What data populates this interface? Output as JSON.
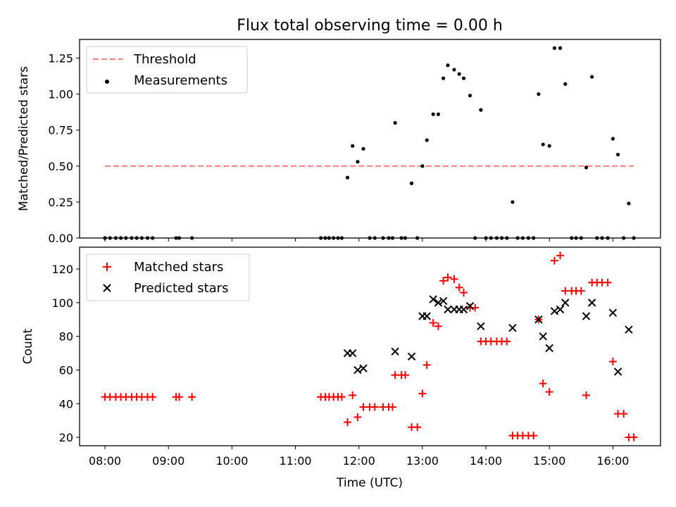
{
  "title": "Flux total observing time = 0.00 h",
  "colors": {
    "threshold": "#ff7f7f",
    "measurements": "#000000",
    "matched": "#ff0000",
    "predicted": "#000000"
  },
  "chart_data": [
    {
      "type": "scatter",
      "panel": "top",
      "title": "Flux total observing time = 0.00 h",
      "xlabel": "",
      "ylabel": "Matched/Predicted stars",
      "x_unit": "hours (UTC)",
      "xlim": [
        7.6,
        16.75
      ],
      "ylim": [
        0,
        1.38
      ],
      "yticks": [
        0,
        0.25,
        0.5,
        0.75,
        1.0,
        1.25
      ],
      "ytick_labels": [
        "0.00",
        "0.25",
        "0.50",
        "0.75",
        "1.00",
        "1.25"
      ],
      "legend": {
        "placement": "upper-left",
        "entries": [
          "Threshold",
          "Measurements"
        ]
      },
      "threshold": {
        "name": "Threshold",
        "y": 0.5,
        "x": [
          8.0,
          16.33
        ],
        "style": "dashed"
      },
      "series": [
        {
          "name": "Measurements",
          "points": [
            [
              8.0,
              0
            ],
            [
              8.08,
              0
            ],
            [
              8.17,
              0
            ],
            [
              8.25,
              0
            ],
            [
              8.33,
              0
            ],
            [
              8.42,
              0
            ],
            [
              8.5,
              0
            ],
            [
              8.58,
              0
            ],
            [
              8.67,
              0
            ],
            [
              8.75,
              0
            ],
            [
              9.12,
              0
            ],
            [
              9.17,
              0
            ],
            [
              9.37,
              0
            ],
            [
              11.4,
              0
            ],
            [
              11.47,
              0
            ],
            [
              11.53,
              0
            ],
            [
              11.6,
              0
            ],
            [
              11.67,
              0
            ],
            [
              11.73,
              0
            ],
            [
              11.82,
              0.42
            ],
            [
              11.9,
              0.64
            ],
            [
              11.98,
              0.53
            ],
            [
              12.07,
              0.62
            ],
            [
              12.17,
              0
            ],
            [
              12.25,
              0
            ],
            [
              12.38,
              0
            ],
            [
              12.47,
              0
            ],
            [
              12.53,
              0
            ],
            [
              12.57,
              0.8
            ],
            [
              12.67,
              0
            ],
            [
              12.73,
              0
            ],
            [
              12.83,
              0.38
            ],
            [
              12.92,
              0
            ],
            [
              13.0,
              0.5
            ],
            [
              13.07,
              0.68
            ],
            [
              13.17,
              0.86
            ],
            [
              13.25,
              0.86
            ],
            [
              13.33,
              1.11
            ],
            [
              13.4,
              1.2
            ],
            [
              13.5,
              1.17
            ],
            [
              13.58,
              1.14
            ],
            [
              13.65,
              1.11
            ],
            [
              13.75,
              0.99
            ],
            [
              13.83,
              0
            ],
            [
              13.92,
              0.89
            ],
            [
              14.0,
              0
            ],
            [
              14.08,
              0
            ],
            [
              14.17,
              0
            ],
            [
              14.25,
              0
            ],
            [
              14.33,
              0
            ],
            [
              14.42,
              0.25
            ],
            [
              14.5,
              0
            ],
            [
              14.58,
              0
            ],
            [
              14.67,
              0
            ],
            [
              14.75,
              0
            ],
            [
              14.83,
              1.0
            ],
            [
              14.9,
              0.65
            ],
            [
              15.0,
              0.64
            ],
            [
              15.08,
              1.32
            ],
            [
              15.17,
              1.32
            ],
            [
              15.25,
              1.07
            ],
            [
              15.35,
              0
            ],
            [
              15.42,
              0
            ],
            [
              15.5,
              0
            ],
            [
              15.58,
              0.49
            ],
            [
              15.67,
              1.12
            ],
            [
              15.75,
              0
            ],
            [
              15.83,
              0
            ],
            [
              15.92,
              0
            ],
            [
              16.0,
              0.69
            ],
            [
              16.08,
              0.58
            ],
            [
              16.17,
              0
            ],
            [
              16.25,
              0.24
            ],
            [
              16.33,
              0
            ]
          ]
        }
      ]
    },
    {
      "type": "scatter",
      "panel": "bottom",
      "xlabel": "Time (UTC)",
      "ylabel": "Count",
      "x_unit": "hours (UTC)",
      "xlim": [
        7.6,
        16.75
      ],
      "ylim": [
        15,
        133
      ],
      "xticks": [
        8,
        9,
        10,
        11,
        12,
        13,
        14,
        15,
        16
      ],
      "xtick_labels": [
        "08:00",
        "09:00",
        "10:00",
        "11:00",
        "12:00",
        "13:00",
        "14:00",
        "15:00",
        "16:00"
      ],
      "yticks": [
        20,
        40,
        60,
        80,
        100,
        120
      ],
      "ytick_labels": [
        "20",
        "40",
        "60",
        "80",
        "100",
        "120"
      ],
      "legend": {
        "placement": "upper-left",
        "entries": [
          "Matched stars",
          "Predicted stars"
        ]
      },
      "series": [
        {
          "name": "Matched stars",
          "marker": "plus",
          "points": [
            [
              8.0,
              44
            ],
            [
              8.08,
              44
            ],
            [
              8.17,
              44
            ],
            [
              8.25,
              44
            ],
            [
              8.33,
              44
            ],
            [
              8.42,
              44
            ],
            [
              8.5,
              44
            ],
            [
              8.58,
              44
            ],
            [
              8.67,
              44
            ],
            [
              8.75,
              44
            ],
            [
              9.12,
              44
            ],
            [
              9.17,
              44
            ],
            [
              9.37,
              44
            ],
            [
              11.4,
              44
            ],
            [
              11.47,
              44
            ],
            [
              11.53,
              44
            ],
            [
              11.6,
              44
            ],
            [
              11.67,
              44
            ],
            [
              11.73,
              44
            ],
            [
              11.82,
              29
            ],
            [
              11.9,
              45
            ],
            [
              11.98,
              32
            ],
            [
              12.07,
              38
            ],
            [
              12.17,
              38
            ],
            [
              12.25,
              38
            ],
            [
              12.38,
              38
            ],
            [
              12.47,
              38
            ],
            [
              12.53,
              38
            ],
            [
              12.57,
              57
            ],
            [
              12.67,
              57
            ],
            [
              12.73,
              57
            ],
            [
              12.83,
              26
            ],
            [
              12.92,
              26
            ],
            [
              13.0,
              46
            ],
            [
              13.07,
              63
            ],
            [
              13.17,
              88
            ],
            [
              13.25,
              86
            ],
            [
              13.33,
              113
            ],
            [
              13.4,
              115
            ],
            [
              13.5,
              114
            ],
            [
              13.58,
              109
            ],
            [
              13.65,
              106
            ],
            [
              13.75,
              97
            ],
            [
              13.83,
              97
            ],
            [
              13.92,
              77
            ],
            [
              14.0,
              77
            ],
            [
              14.08,
              77
            ],
            [
              14.17,
              77
            ],
            [
              14.25,
              77
            ],
            [
              14.33,
              77
            ],
            [
              14.42,
              21
            ],
            [
              14.5,
              21
            ],
            [
              14.58,
              21
            ],
            [
              14.67,
              21
            ],
            [
              14.75,
              21
            ],
            [
              14.83,
              90
            ],
            [
              14.9,
              52
            ],
            [
              15.0,
              47
            ],
            [
              15.08,
              125
            ],
            [
              15.17,
              128
            ],
            [
              15.25,
              107
            ],
            [
              15.35,
              107
            ],
            [
              15.42,
              107
            ],
            [
              15.5,
              107
            ],
            [
              15.58,
              45
            ],
            [
              15.67,
              112
            ],
            [
              15.75,
              112
            ],
            [
              15.83,
              112
            ],
            [
              15.92,
              112
            ],
            [
              16.0,
              65
            ],
            [
              16.08,
              34
            ],
            [
              16.17,
              34
            ],
            [
              16.25,
              20
            ],
            [
              16.33,
              20
            ]
          ]
        },
        {
          "name": "Predicted stars",
          "marker": "x",
          "points": [
            [
              11.82,
              70
            ],
            [
              11.9,
              70
            ],
            [
              11.98,
              60
            ],
            [
              12.07,
              61
            ],
            [
              12.57,
              71
            ],
            [
              12.83,
              68
            ],
            [
              13.0,
              92
            ],
            [
              13.07,
              92
            ],
            [
              13.17,
              102
            ],
            [
              13.25,
              100
            ],
            [
              13.33,
              101
            ],
            [
              13.4,
              96
            ],
            [
              13.5,
              96
            ],
            [
              13.58,
              96
            ],
            [
              13.65,
              96
            ],
            [
              13.75,
              98
            ],
            [
              13.92,
              86
            ],
            [
              14.42,
              85
            ],
            [
              14.83,
              90
            ],
            [
              14.9,
              80
            ],
            [
              15.0,
              73
            ],
            [
              15.08,
              95
            ],
            [
              15.17,
              96
            ],
            [
              15.25,
              100
            ],
            [
              15.58,
              92
            ],
            [
              15.67,
              100
            ],
            [
              16.0,
              94
            ],
            [
              16.08,
              59
            ],
            [
              16.25,
              84
            ]
          ]
        }
      ]
    }
  ]
}
